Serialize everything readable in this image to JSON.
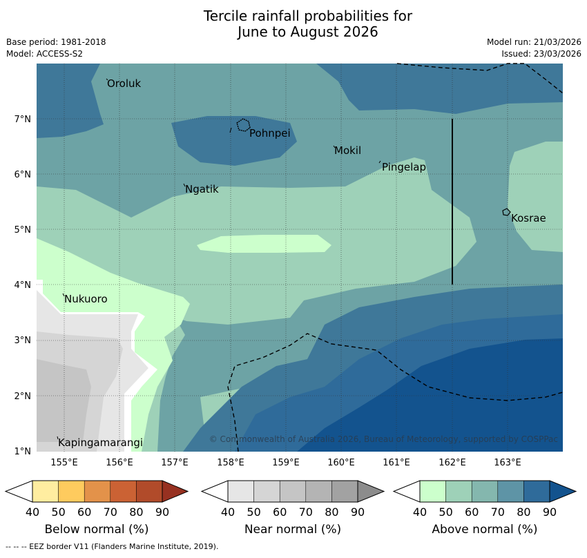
{
  "title": {
    "line1": "Tercile rainfall probabilities for",
    "line2": "June to August 2026"
  },
  "meta": {
    "base_period": "Base period: 1981-2018",
    "model": "Model: ACCESS-S2",
    "model_run": "Model run: 21/03/2026",
    "issued": "Issued: 23/03/2026"
  },
  "axes": {
    "lon_labels": [
      "155°E",
      "156°E",
      "157°E",
      "158°E",
      "159°E",
      "160°E",
      "161°E",
      "162°E",
      "163°E"
    ],
    "lat_labels": [
      "1°N",
      "2°N",
      "3°N",
      "4°N",
      "5°N",
      "6°N",
      "7°N"
    ]
  },
  "places": [
    {
      "name": "Oroluk"
    },
    {
      "name": "Pohnpei"
    },
    {
      "name": "Mokil"
    },
    {
      "name": "Pingelap"
    },
    {
      "name": "Ngatik"
    },
    {
      "name": "Kosrae"
    },
    {
      "name": "Nukuoro"
    },
    {
      "name": "Kapingamarangi"
    }
  ],
  "copyright": "© Commonwealth of Australia 2026, Bureau of Meteorology, supported by COSPPac",
  "colorbars": [
    {
      "title": "Below normal (%)",
      "ticks": [
        "40",
        "50",
        "60",
        "70",
        "80",
        "90"
      ],
      "colors": [
        "#ffffff",
        "#ffeda0",
        "#fecb5e",
        "#e3924a",
        "#cb6234",
        "#b14b2a",
        "#973121"
      ]
    },
    {
      "title": "Near normal (%)",
      "ticks": [
        "40",
        "50",
        "60",
        "70",
        "80",
        "90"
      ],
      "colors": [
        "#ffffff",
        "#e6e6e6",
        "#d5d5d5",
        "#c5c5c5",
        "#b4b4b4",
        "#a2a2a2",
        "#8c8c8c"
      ]
    },
    {
      "title": "Above normal (%)",
      "ticks": [
        "40",
        "50",
        "60",
        "70",
        "80",
        "90"
      ],
      "colors": [
        "#ffffff",
        "#ccffcc",
        "#9ed1b8",
        "#84b7ae",
        "#5e94a6",
        "#2f6b9a",
        "#13538e"
      ]
    }
  ],
  "footnote": "--  --  -- EEZ border V11 (Flanders Marine Institute, 2019)."
}
